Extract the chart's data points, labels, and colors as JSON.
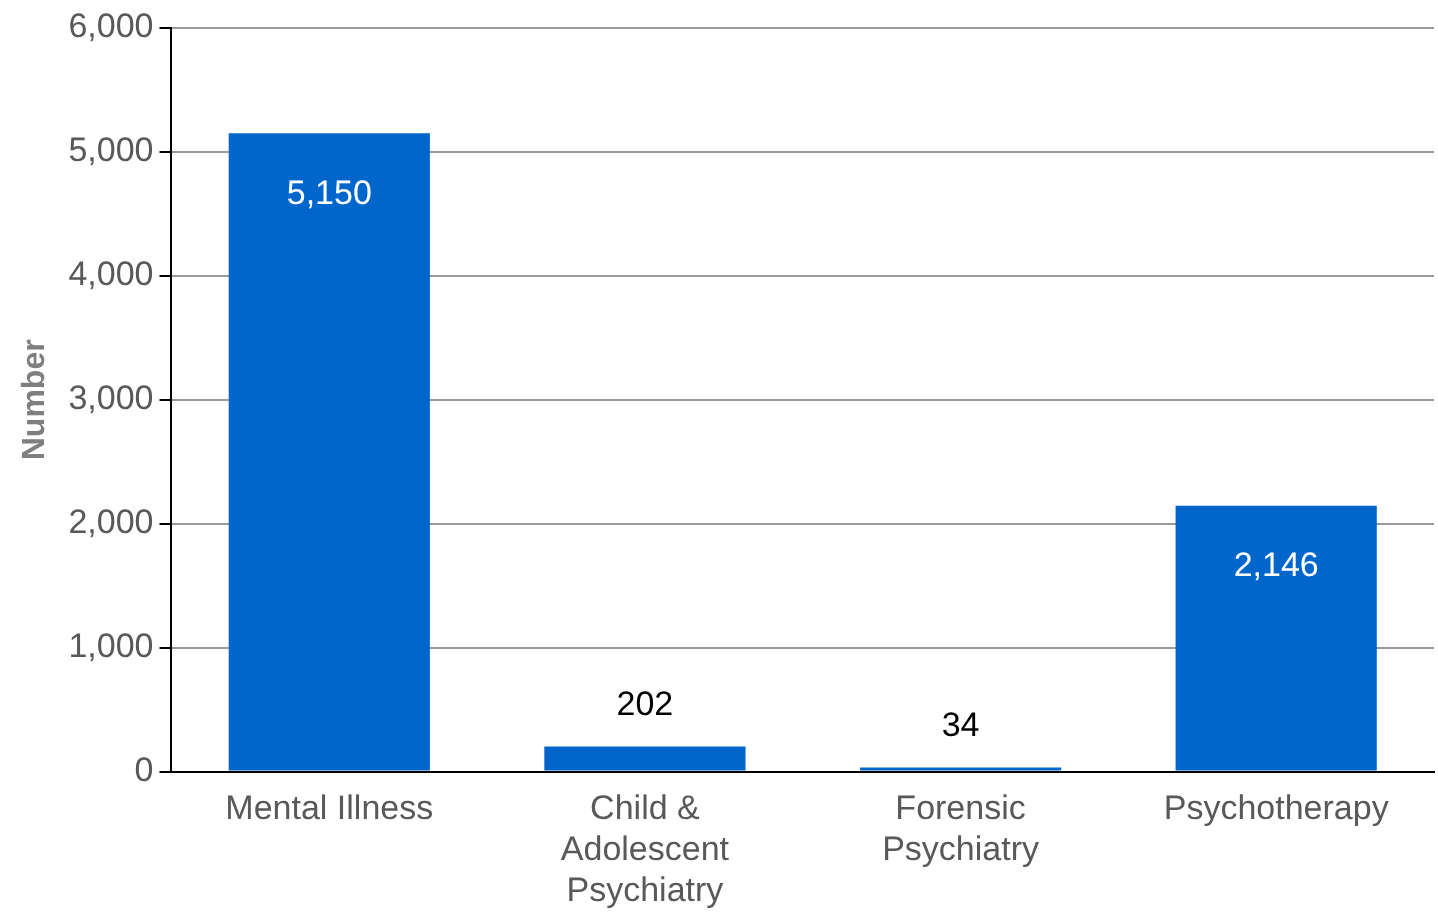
{
  "chart_data": {
    "type": "bar",
    "ylabel": "Number",
    "categories": [
      "Mental Illness",
      "Child & Adolescent Psychiatry",
      "Forensic Psychiatry",
      "Psychotherapy"
    ],
    "values": [
      5150,
      202,
      34,
      2146
    ],
    "color": "#0066cc",
    "ylim": [
      0,
      6000
    ],
    "yticks": [
      {
        "value": 0,
        "label": "0"
      },
      {
        "value": 1000,
        "label": "1,000"
      },
      {
        "value": 2000,
        "label": "2,000"
      },
      {
        "value": 3000,
        "label": "3,000"
      },
      {
        "value": 4000,
        "label": "4,000"
      },
      {
        "value": 5000,
        "label": "5,000"
      },
      {
        "value": 6000,
        "label": "6,000"
      }
    ],
    "value_labels": [
      "5,150",
      "202",
      "34",
      "2,146"
    ],
    "grid": "y",
    "legend": false
  }
}
